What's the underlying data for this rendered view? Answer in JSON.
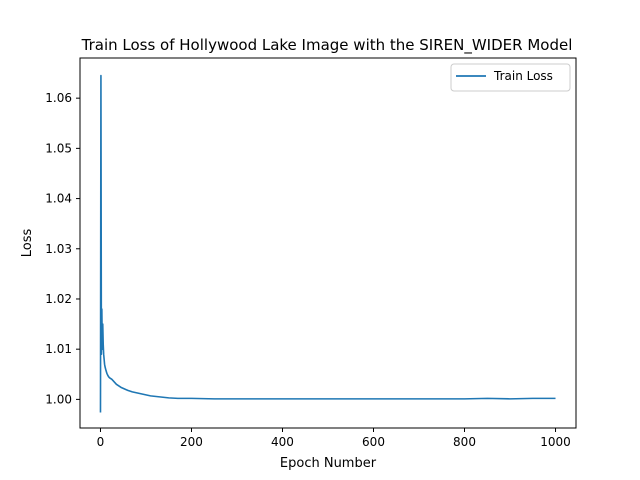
{
  "chart_data": {
    "type": "line",
    "title": "Train Loss of Hollywood Lake Image with the SIREN_WIDER Model",
    "xlabel": "Epoch Number",
    "ylabel": "Loss",
    "xlim": [
      -45,
      1045
    ],
    "ylim": [
      0.9943,
      1.068
    ],
    "xticks": [
      0,
      200,
      400,
      600,
      800,
      1000
    ],
    "xtick_labels": [
      "0",
      "200",
      "400",
      "600",
      "800",
      "1000"
    ],
    "yticks": [
      1.0,
      1.01,
      1.02,
      1.03,
      1.04,
      1.05,
      1.06
    ],
    "ytick_labels": [
      "1.00",
      "1.01",
      "1.02",
      "1.03",
      "1.04",
      "1.05",
      "1.06"
    ],
    "grid": false,
    "legend_position": "upper right",
    "series": [
      {
        "name": "Train Loss",
        "color": "#1f77b4",
        "x": [
          0,
          1,
          2,
          3,
          4,
          5,
          6,
          7,
          8,
          9,
          10,
          12,
          14,
          16,
          18,
          20,
          25,
          30,
          35,
          40,
          45,
          50,
          60,
          70,
          80,
          90,
          100,
          110,
          120,
          130,
          140,
          150,
          170,
          200,
          250,
          300,
          350,
          400,
          450,
          500,
          550,
          600,
          650,
          700,
          750,
          800,
          850,
          900,
          950,
          1000
        ],
        "y": [
          0.9974,
          1.0645,
          1.009,
          1.018,
          1.01,
          1.015,
          1.011,
          1.009,
          1.008,
          1.007,
          1.0065,
          1.0058,
          1.0052,
          1.0048,
          1.0045,
          1.0043,
          1.004,
          1.0035,
          1.003,
          1.0027,
          1.0024,
          1.0022,
          1.0018,
          1.0015,
          1.0013,
          1.0011,
          1.0009,
          1.0007,
          1.0006,
          1.0005,
          1.0004,
          1.0003,
          1.0002,
          1.0002,
          1.0001,
          1.0001,
          1.0001,
          1.0001,
          1.0001,
          1.0001,
          1.0001,
          1.0001,
          1.0001,
          1.0001,
          1.0001,
          1.0001,
          1.0002,
          1.0001,
          1.0002,
          1.0002
        ]
      }
    ]
  }
}
